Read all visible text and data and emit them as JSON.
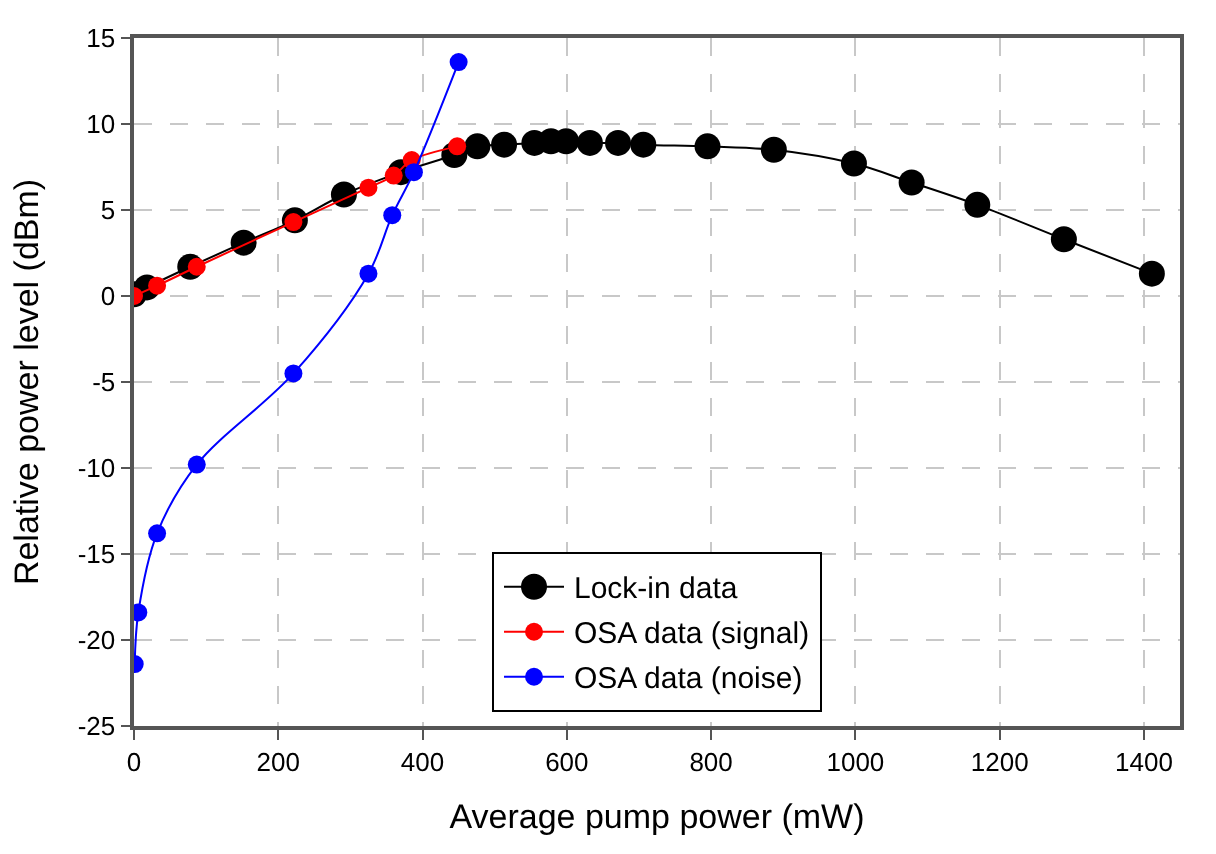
{
  "chart_data": {
    "type": "line",
    "xlabel": "Average pump power (mW)",
    "ylabel": "Relative power level (dBm)",
    "xlim": [
      0,
      1450
    ],
    "xticks": [
      0,
      200,
      400,
      600,
      800,
      1000,
      1200,
      1400
    ],
    "ylim": [
      -25,
      15
    ],
    "yticks": [
      -25,
      -20,
      -15,
      -10,
      -5,
      0,
      5,
      10,
      15
    ],
    "grid": true,
    "legend": "bottom",
    "marker": "circle",
    "line_style": "solid",
    "series": [
      {
        "name": "Lock-in data",
        "color": "#000000",
        "x": [
          0,
          18,
          78,
          152,
          223,
          291,
          370,
          444,
          476,
          513,
          555,
          578,
          599,
          632,
          671,
          706,
          795,
          887,
          998,
          1078,
          1169,
          1289,
          1411
        ],
        "values": [
          0.1,
          0.5,
          1.7,
          3.1,
          4.4,
          5.9,
          7.2,
          8.2,
          8.7,
          8.8,
          8.9,
          9.0,
          9.0,
          8.9,
          8.9,
          8.8,
          8.7,
          8.5,
          7.7,
          6.6,
          5.3,
          3.3,
          1.3
        ]
      },
      {
        "name": "OSA data (signal)",
        "color": "#ff0000",
        "x": [
          0,
          32,
          87,
          221,
          325,
          360,
          385,
          448
        ],
        "values": [
          0.0,
          0.6,
          1.7,
          4.3,
          6.3,
          7.0,
          7.9,
          8.7
        ]
      },
      {
        "name": "OSA data (noise)",
        "color": "#0000ff",
        "x": [
          1,
          6,
          32,
          87,
          221,
          325,
          358,
          388,
          450
        ],
        "values": [
          -21.4,
          -18.4,
          -13.8,
          -9.8,
          -4.5,
          1.3,
          4.7,
          7.2,
          13.6
        ]
      }
    ]
  }
}
